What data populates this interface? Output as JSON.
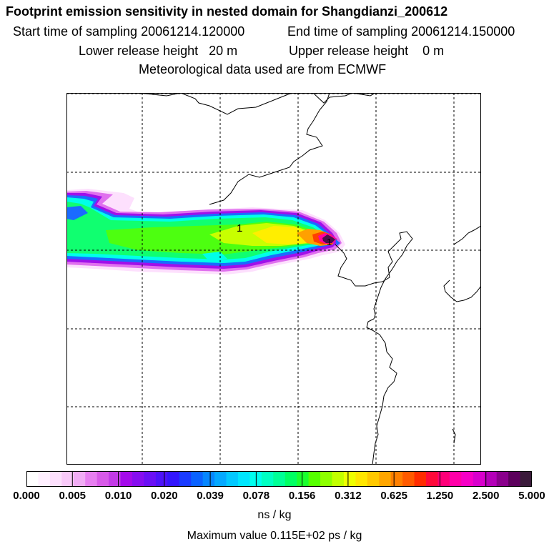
{
  "header": {
    "title": "Footprint emission sensitivity in nested domain for Shangdianzi_200612",
    "start_label": "Start time of sampling 20061214.120000",
    "end_label": "End time of sampling 20061214.150000",
    "lower_label": "Lower release height   20 m",
    "upper_label": "Upper release height    0 m",
    "met_label": "Meteorological data used are from ECMWF"
  },
  "map": {
    "site_marker_label": "1",
    "peak_marker_label": "1"
  },
  "colorbar": {
    "colors": [
      "#ffffff",
      "#fff0ff",
      "#fde0fd",
      "#f9c9f9",
      "#f1acf5",
      "#e77ff0",
      "#d85ae8",
      "#c33ae6",
      "#a40bea",
      "#860ef0",
      "#6a10f5",
      "#4d13fa",
      "#3316fd",
      "#1a3bff",
      "#0a62ff",
      "#0686ff",
      "#04a8ff",
      "#02c8ff",
      "#00e6ff",
      "#00ffee",
      "#00ffc2",
      "#00ff96",
      "#00ff62",
      "#1aff2e",
      "#55ff00",
      "#8dff00",
      "#c2ff00",
      "#eeff00",
      "#ffe600",
      "#ffc800",
      "#ffa600",
      "#ff7f00",
      "#ff5a00",
      "#ff2c00",
      "#ff0a3a",
      "#ff0078",
      "#ff00a8",
      "#f600c6",
      "#d800cc",
      "#b400b8",
      "#8a008c",
      "#5c005c",
      "#3a1a3a"
    ],
    "tick_labels": [
      "0.000",
      "0.005",
      "0.010",
      "0.020",
      "0.039",
      "0.078",
      "0.156",
      "0.312",
      "0.625",
      "1.250",
      "2.500",
      "5.000"
    ],
    "units": "ns / kg",
    "max_value": "Maximum value  0.115E+02 ps / kg"
  }
}
